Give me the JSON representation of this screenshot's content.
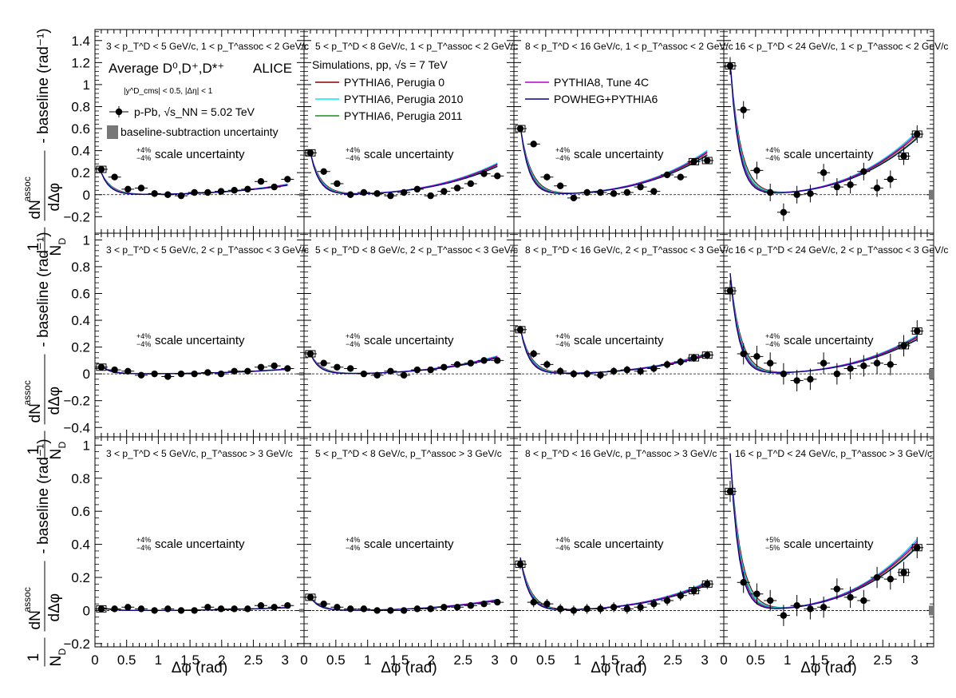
{
  "figure": {
    "ylabel_row1": "- baseline (rad⁻¹)",
    "ylabel_row2": "- baseline (rad⁻¹)",
    "ylabel_row3": "- baseline (rad⁻¹)",
    "xlabel": "Δφ (rad)",
    "ylabel_frac_left_num": "1",
    "ylabel_frac_left_den": "N",
    "ylabel_frac_left_den_sub": "D",
    "ylabel_frac_right_num": "dN",
    "ylabel_frac_right_num_sup": "assoc",
    "ylabel_frac_right_den": "dΔφ"
  },
  "legend": {
    "average_label": "Average D⁰,D⁺,D*⁺",
    "experiment": "ALICE",
    "cuts": "|y^D_cms| < 0.5, |Δη| < 1",
    "data_entry": "p-Pb, √s_NN = 5.02 TeV",
    "syst_entry": "baseline-subtraction uncertainty",
    "sim_title": "Simulations, pp, √s = 7 TeV",
    "models": [
      {
        "name": "PYTHIA6, Perugia 0",
        "color": "#8b0000"
      },
      {
        "name": "PYTHIA6, Perugia 2010",
        "color": "#00e5ff"
      },
      {
        "name": "PYTHIA6, Perugia 2011",
        "color": "#1a8c1a"
      },
      {
        "name": "PYTHIA8, Tune 4C",
        "color": "#b000c8"
      },
      {
        "name": "POWHEG+PYTHIA6",
        "color": "#00008b"
      }
    ]
  },
  "chart_data": {
    "type": "scatter",
    "x_label": "Δφ (rad)",
    "x_range": [
      0,
      3.3
    ],
    "x_ticks": [
      "0",
      "0.5",
      "1",
      "1.5",
      "2",
      "2.5",
      "3"
    ],
    "x_points": [
      0.1,
      0.31,
      0.52,
      0.73,
      0.94,
      1.15,
      1.36,
      1.57,
      1.78,
      1.99,
      2.2,
      2.41,
      2.62,
      2.83,
      3.04
    ],
    "rows": [
      {
        "y_range": [
          -0.35,
          1.5
        ],
        "y_ticks": [
          "−0.2",
          "0",
          "0.2",
          "0.4",
          "0.6",
          "0.8",
          "1",
          "1.2",
          "1.4"
        ],
        "y_tick_values": [
          -0.2,
          0,
          0.2,
          0.4,
          0.6,
          0.8,
          1,
          1.2,
          1.4
        ]
      },
      {
        "y_range": [
          -0.47,
          1.05
        ],
        "y_ticks": [
          "−0.4",
          "−0.2",
          "0",
          "0.2",
          "0.4",
          "0.6",
          "0.8",
          "1"
        ],
        "y_tick_values": [
          -0.4,
          -0.2,
          0,
          0.2,
          0.4,
          0.6,
          0.8,
          1
        ]
      },
      {
        "y_range": [
          -0.22,
          1.05
        ],
        "y_ticks": [
          "−0.2",
          "0",
          "0.2",
          "0.4",
          "0.6",
          "0.8",
          "1"
        ],
        "y_tick_values": [
          -0.2,
          0,
          0.2,
          0.4,
          0.6,
          0.8,
          1
        ]
      }
    ],
    "panels": [
      {
        "row": 0,
        "col": 0,
        "label": "3 < p_T^D < 5 GeV/c, 1 < p_T^assoc < 2 GeV/c",
        "scale": "+4% −4% scale uncertainty",
        "values": [
          0.23,
          0.16,
          0.05,
          0.06,
          0.01,
          0.0,
          -0.01,
          0.02,
          0.02,
          0.03,
          0.04,
          0.05,
          0.12,
          0.07,
          0.14
        ],
        "model_a": 0.2,
        "model_b": 0.1
      },
      {
        "row": 0,
        "col": 1,
        "label": "5 < p_T^D < 8 GeV/c, 1 < p_T^assoc < 2 GeV/c",
        "scale": "+4% −4% scale uncertainty",
        "values": [
          0.38,
          0.21,
          0.1,
          0.0,
          0.02,
          0.01,
          -0.01,
          0.02,
          0.05,
          -0.01,
          0.03,
          0.06,
          0.1,
          0.19,
          0.17
        ],
        "model_a": 0.38,
        "model_b": 0.3
      },
      {
        "row": 0,
        "col": 2,
        "label": "8 < p_T^D < 16 GeV/c, 1 < p_T^assoc < 2 GeV/c",
        "scale": "+4% −4% scale uncertainty",
        "values": [
          0.6,
          0.46,
          0.16,
          0.08,
          -0.03,
          0.02,
          0.02,
          0.01,
          0.02,
          0.07,
          0.03,
          0.18,
          0.16,
          0.3,
          0.31
        ],
        "model_a": 0.62,
        "model_b": 0.42
      },
      {
        "row": 0,
        "col": 3,
        "label": "16 < p_T^D < 24 GeV/c, 1 < p_T^assoc < 2 GeV/c",
        "scale": "+4% −4% scale uncertainty",
        "values": [
          1.17,
          0.77,
          0.22,
          0.02,
          -0.16,
          0.0,
          0.01,
          0.2,
          0.07,
          0.09,
          0.21,
          0.06,
          0.14,
          0.35,
          0.55
        ],
        "model_a": 1.2,
        "model_b": 0.6
      },
      {
        "row": 1,
        "col": 0,
        "label": "3 < p_T^D < 5 GeV/c, 2 < p_T^assoc < 3 GeV/c",
        "scale": "+4% −4% scale uncertainty",
        "values": [
          0.05,
          0.03,
          0.02,
          -0.01,
          0.0,
          -0.02,
          0.0,
          0.0,
          0.01,
          0.0,
          0.02,
          0.02,
          0.05,
          0.06,
          0.04
        ],
        "model_a": 0.06,
        "model_b": 0.04
      },
      {
        "row": 1,
        "col": 1,
        "label": "5 < p_T^D < 8 GeV/c, 2 < p_T^assoc < 3 GeV/c",
        "scale": "+4% −4% scale uncertainty",
        "values": [
          0.15,
          0.08,
          0.05,
          0.04,
          0.0,
          -0.01,
          0.02,
          -0.01,
          0.03,
          0.03,
          0.05,
          0.07,
          0.08,
          0.1,
          0.1
        ],
        "model_a": 0.15,
        "model_b": 0.14
      },
      {
        "row": 1,
        "col": 2,
        "label": "8 < p_T^D < 16 GeV/c, 2 < p_T^assoc < 3 GeV/c",
        "scale": "+4% −4% scale uncertainty",
        "values": [
          0.33,
          0.15,
          0.07,
          0.02,
          0.0,
          0.0,
          -0.01,
          0.02,
          0.03,
          0.02,
          0.04,
          0.07,
          0.09,
          0.12,
          0.14
        ],
        "model_a": 0.34,
        "model_b": 0.16
      },
      {
        "row": 1,
        "col": 3,
        "label": "16 < p_T^D < 24 GeV/c, 2 < p_T^assoc < 3 GeV/c",
        "scale": "+4% −4% scale uncertainty",
        "values": [
          0.62,
          0.15,
          0.13,
          0.08,
          0.0,
          -0.05,
          -0.04,
          0.08,
          0.0,
          0.04,
          0.06,
          0.08,
          0.07,
          0.21,
          0.32
        ],
        "model_a": 0.75,
        "model_b": 0.3
      },
      {
        "row": 2,
        "col": 0,
        "label": "3 < p_T^D < 5 GeV/c, p_T^assoc > 3 GeV/c",
        "scale": "+4% −4% scale uncertainty",
        "values": [
          0.01,
          0.01,
          0.02,
          0.01,
          0.0,
          0.01,
          0.0,
          0.0,
          0.02,
          0.01,
          0.01,
          0.01,
          0.03,
          0.02,
          0.03
        ],
        "model_a": 0.02,
        "model_b": 0.02
      },
      {
        "row": 2,
        "col": 1,
        "label": "5 < p_T^D < 8 GeV/c, p_T^assoc > 3 GeV/c",
        "scale": "+4% −4% scale uncertainty",
        "values": [
          0.08,
          0.04,
          0.02,
          0.01,
          0.01,
          0.0,
          0.0,
          0.0,
          0.01,
          0.01,
          0.02,
          0.02,
          0.03,
          0.04,
          0.05
        ],
        "model_a": 0.08,
        "model_b": 0.07
      },
      {
        "row": 2,
        "col": 2,
        "label": "8 < p_T^D < 16 GeV/c, p_T^assoc > 3 GeV/c",
        "scale": "+4% −4% scale uncertainty",
        "values": [
          0.28,
          0.05,
          0.04,
          0.01,
          0.0,
          0.01,
          0.01,
          0.02,
          0.01,
          0.02,
          0.04,
          0.06,
          0.09,
          0.12,
          0.16
        ],
        "model_a": 0.32,
        "model_b": 0.18
      },
      {
        "row": 2,
        "col": 3,
        "label": "16 < p_T^D < 24 GeV/c, p_T^assoc > 3 GeV/c",
        "scale": "+5% −5% scale uncertainty",
        "values": [
          0.72,
          0.17,
          0.1,
          0.06,
          -0.03,
          0.03,
          0.01,
          0.02,
          0.13,
          0.08,
          0.06,
          0.2,
          0.19,
          0.23,
          0.38
        ],
        "model_a": 0.95,
        "model_b": 0.45
      }
    ]
  }
}
